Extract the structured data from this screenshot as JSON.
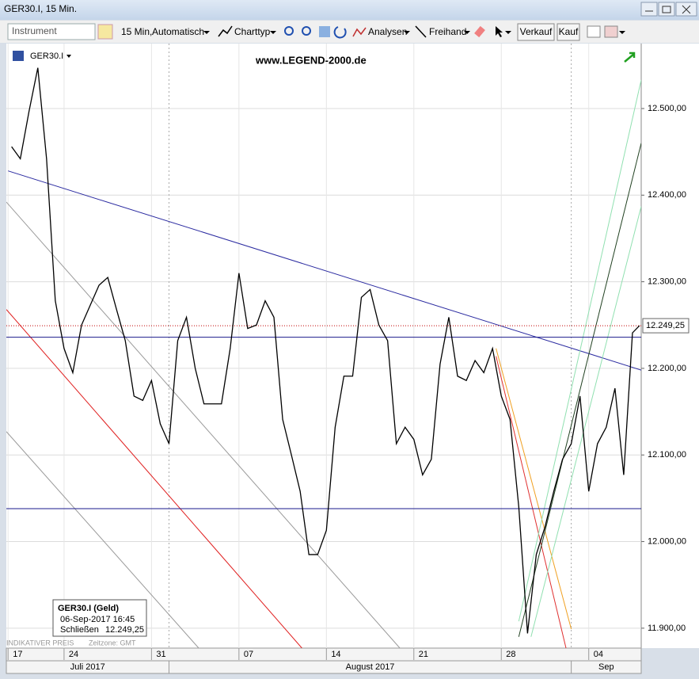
{
  "window": {
    "title": "GER30.I, 15 Min."
  },
  "toolbar": {
    "instrument": "Instrument",
    "interval": "15 Min,",
    "mode": "Automatisch",
    "chart_type": "Charttyp",
    "analyses": "Analysen",
    "freehand": "Freihand",
    "sell": "Verkauf",
    "buy": "Kauf"
  },
  "chart_data": {
    "type": "line",
    "watermark": "www.LEGEND-2000.de",
    "series": [
      {
        "name": "GER30.I",
        "color": "#000000",
        "x": [
          -3,
          -2.5,
          -2,
          -1.5,
          -1,
          -0.5,
          0,
          0.5,
          1,
          1.5,
          2,
          2.5,
          3,
          3.5,
          4,
          4.5,
          5,
          5.5,
          6,
          6.5,
          7,
          7.5,
          8,
          8.5,
          9,
          9.5,
          10,
          10.5,
          11,
          11.5,
          12,
          12.5,
          13,
          13.5,
          14,
          14.5,
          15,
          15.5,
          16,
          16.5,
          17,
          17.5,
          18,
          18.5,
          19,
          19.5,
          20,
          20.5,
          21,
          21.5,
          22,
          22.5,
          23,
          23.5,
          24,
          24.5,
          25,
          25.5,
          26,
          26.5,
          27,
          27.5,
          28,
          28.5,
          29,
          29.5,
          30,
          30.5,
          31,
          31.5,
          32,
          32.5,
          32.9
        ],
        "values": [
          12456,
          12442,
          12497,
          12547,
          12442,
          12278,
          12223,
          12195,
          12250,
          12273,
          12296,
          12305,
          12268,
          12232,
          12168,
          12163,
          12186,
          12136,
          12113,
          12232,
          12259,
          12200,
          12159,
          12159,
          12159,
          12223,
          12310,
          12246,
          12250,
          12278,
          12259,
          12141,
          12100,
          12058,
          11985,
          11985,
          12013,
          12132,
          12191,
          12191,
          12282,
          12291,
          12250,
          12232,
          12113,
          12132,
          12118,
          12077,
          12095,
          12205,
          12259,
          12191,
          12186,
          12209,
          12195,
          12223,
          12168,
          12141,
          12040,
          11894,
          11985,
          12017,
          12058,
          12095,
          12113,
          12168,
          12058,
          12113,
          12132,
          12177,
          12077,
          12241,
          12249.25
        ]
      }
    ],
    "last_price": {
      "value": 12249.25,
      "label": "12.249,25"
    },
    "hlines": [
      {
        "value": 12249.25,
        "color": "#c00000",
        "dotted": true
      },
      {
        "value": 12236,
        "color": "#1a1a8c",
        "dotted": false
      },
      {
        "value": 12038,
        "color": "#1a1a8c",
        "dotted": false
      }
    ],
    "lines": [
      {
        "color": "#2a2aa0",
        "x": [
          -3.2,
          33
        ],
        "values": [
          12428,
          12198
        ]
      },
      {
        "color": "#999999",
        "x": [
          -3.3,
          19.2
        ],
        "values": [
          12392,
          11877
        ]
      },
      {
        "color": "#e02020",
        "x": [
          -3.3,
          13.6
        ],
        "values": [
          12268,
          11877
        ]
      },
      {
        "color": "#999999",
        "x": [
          -3.3,
          7.7
        ],
        "values": [
          12127,
          11877
        ]
      },
      {
        "color": "#f0a020",
        "x": [
          24.7,
          29
        ],
        "values": [
          12223,
          11899
        ]
      },
      {
        "color": "#e03030",
        "x": [
          24.7,
          28.7
        ],
        "values": [
          12214,
          11877
        ]
      },
      {
        "color": "#204020",
        "x": [
          26,
          33
        ],
        "values": [
          11890,
          12460
        ]
      },
      {
        "color": "#90e0b0",
        "x": [
          26,
          33
        ],
        "values": [
          11908,
          12533
        ]
      },
      {
        "color": "#90e0b0",
        "x": [
          26.7,
          33
        ],
        "values": [
          11890,
          12387
        ]
      }
    ],
    "ylim": [
      11877,
      12575
    ],
    "yticks": [
      {
        "value": 11900,
        "label": "11.900,00"
      },
      {
        "value": 12000,
        "label": "12.000,00"
      },
      {
        "value": 12100,
        "label": "12.100,00"
      },
      {
        "value": 12200,
        "label": "12.200,00"
      },
      {
        "value": 12300,
        "label": "12.300,00"
      },
      {
        "value": 12400,
        "label": "12.400,00"
      },
      {
        "value": 12500,
        "label": "12.500,00"
      }
    ],
    "xlim": [
      -3.3,
      33
    ],
    "xticks": [
      {
        "value": -3.2,
        "label": "17"
      },
      {
        "value": 0,
        "label": "24"
      },
      {
        "value": 5,
        "label": "31"
      },
      {
        "value": 10,
        "label": "07"
      },
      {
        "value": 15,
        "label": "14"
      },
      {
        "value": 20,
        "label": "21"
      },
      {
        "value": 25,
        "label": "28"
      },
      {
        "value": 30,
        "label": "04"
      }
    ],
    "months": [
      {
        "label": "Juli 2017",
        "range": [
          -3.3,
          6
        ]
      },
      {
        "label": "August 2017",
        "range": [
          6,
          29
        ]
      },
      {
        "label": "Sep",
        "range": [
          29,
          33
        ]
      }
    ],
    "grid": true,
    "info": {
      "title": "GER30.I (Geld)",
      "datetime": "06-Sep-2017 16:45",
      "close_label": "Schließen",
      "close_value": "12.249,25"
    },
    "footer": {
      "note": "INDIKATIVER PREIS",
      "timezone": "Zeitzone: GMT"
    }
  }
}
